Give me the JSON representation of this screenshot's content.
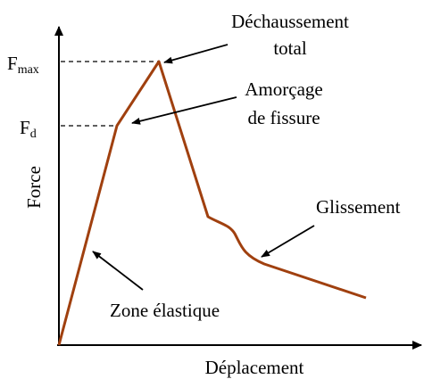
{
  "axes": {
    "x_label": "Déplacement",
    "y_label": "Force"
  },
  "levels": [
    {
      "label": "F",
      "subscript": "max"
    },
    {
      "label": "F",
      "subscript": "d"
    }
  ],
  "annotations": [
    {
      "lines": [
        "Déchaussement",
        "total"
      ]
    },
    {
      "lines": [
        "Amorçage",
        "de fissure"
      ]
    },
    {
      "lines": [
        "Glissement"
      ]
    },
    {
      "lines": [
        "Zone élastique"
      ]
    }
  ]
}
